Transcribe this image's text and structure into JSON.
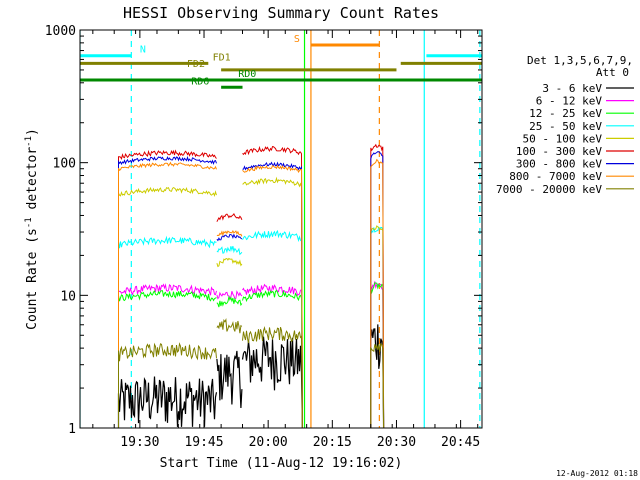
{
  "chart_data": {
    "type": "line",
    "title": "HESSI Observing Summary Count Rates",
    "xlabel": "Start Time (11-Aug-12 19:16:02)",
    "ylabel_prefix": "Count Rate (s",
    "ylabel_sup1": "-1",
    "ylabel_mid": " detector",
    "ylabel_sup2": "-1",
    "ylabel_suffix": ")",
    "footer": "12-Aug-2012 01:18",
    "yscale": "log",
    "ylim": [
      1,
      1000
    ],
    "xlim_minutes": [
      0,
      94
    ],
    "x_tick_minutes": [
      14,
      29,
      44,
      59,
      74,
      89
    ],
    "x_ticks": [
      "19:30",
      "19:45",
      "20:00",
      "20:15",
      "20:30",
      "20:45"
    ],
    "y_ticks": [
      {
        "value": 1,
        "label": "1"
      },
      {
        "value": 10,
        "label": "10"
      },
      {
        "value": 100,
        "label": "100"
      },
      {
        "value": 1000,
        "label": "1000"
      }
    ],
    "legend_header": [
      "Det 1,3,5,6,7,9,",
      "Att 0"
    ],
    "legend_placement": "right",
    "segments": [
      [
        9,
        32
      ],
      [
        32,
        38
      ],
      [
        38,
        52
      ],
      [
        68,
        71
      ]
    ],
    "series": [
      {
        "name": "3 - 6 keV",
        "color": "#000000",
        "levels": [
          1.6,
          2.5,
          3.2,
          4.5
        ],
        "noise": 0.45
      },
      {
        "name": "6 - 12 keV",
        "color": "#ff00ff",
        "levels": [
          10.5,
          9.5,
          10.5,
          11.5
        ],
        "noise": 0.07
      },
      {
        "name": "12 - 25 keV",
        "color": "#00ff00",
        "levels": [
          9.5,
          8.5,
          9.5,
          11.0
        ],
        "noise": 0.06
      },
      {
        "name": "25 - 50 keV",
        "color": "#00ffff",
        "levels": [
          24,
          21,
          27,
          30
        ],
        "noise": 0.06
      },
      {
        "name": "50 - 100 keV",
        "color": "#cccc00",
        "levels": [
          58,
          17,
          68,
          30
        ],
        "noise": 0.04
      },
      {
        "name": "100 - 300 keV",
        "color": "#dd0000",
        "levels": [
          110,
          37,
          118,
          125
        ],
        "noise": 0.04
      },
      {
        "name": "300 - 800 keV",
        "color": "#0000dd",
        "levels": [
          100,
          26,
          90,
          110
        ],
        "noise": 0.03
      },
      {
        "name": "800 - 7000 keV",
        "color": "#ff8800",
        "levels": [
          90,
          28,
          86,
          95
        ],
        "noise": 0.03
      },
      {
        "name": "7000 - 20000 keV",
        "color": "#808000",
        "levels": [
          3.6,
          5.5,
          4.8,
          4.0
        ],
        "noise": 0.12
      }
    ],
    "annotations": [
      {
        "label": "N",
        "color": "#00ffff",
        "x_minutes": [
          0,
          12
        ],
        "y": 640,
        "label_at": 14
      },
      {
        "label": "N",
        "color": "#00ffff",
        "x_minutes": [
          81,
          94
        ],
        "y": 640,
        "label_at": null
      },
      {
        "label": "FD1",
        "color": "#808000",
        "x_minutes": [
          0,
          30
        ],
        "y": 560,
        "label_at": 31
      },
      {
        "label": "FD2",
        "color": "#808000",
        "x_minutes": [
          33,
          74
        ],
        "y": 500,
        "label_at": 25
      },
      {
        "label": "FD2",
        "color": "#808000",
        "x_minutes": [
          75,
          94
        ],
        "y": 560,
        "label_at": null
      },
      {
        "label": "RD0",
        "color": "#008800",
        "x_minutes": [
          0,
          94
        ],
        "y": 420,
        "label_at": 37
      },
      {
        "label": "RD6",
        "color": "#008800",
        "x_minutes": [
          33,
          38
        ],
        "y": 370,
        "label_at": 26
      },
      {
        "label": "S",
        "color": "#ff8800",
        "x_minutes": [
          54,
          70
        ],
        "y": 770,
        "label_at": 50
      }
    ],
    "vlines": [
      {
        "x_minutes": 0,
        "color": "#00ffff",
        "style": "solid"
      },
      {
        "x_minutes": 12,
        "color": "#00ffff",
        "style": "dashed"
      },
      {
        "x_minutes": 54,
        "color": "#ff8800",
        "style": "solid"
      },
      {
        "x_minutes": 70,
        "color": "#ff8800",
        "style": "dashed"
      },
      {
        "x_minutes": 80.5,
        "color": "#00ffff",
        "style": "solid"
      },
      {
        "x_minutes": 93.5,
        "color": "#00ffff",
        "style": "dashed"
      },
      {
        "x_minutes": 52.5,
        "color": "#00ff00",
        "style": "solid"
      }
    ]
  }
}
